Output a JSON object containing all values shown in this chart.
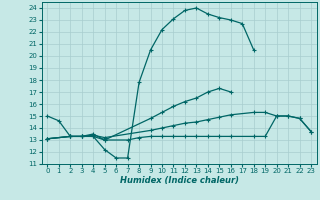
{
  "xlabel": "Humidex (Indice chaleur)",
  "xlim": [
    -0.5,
    23.5
  ],
  "ylim": [
    11,
    24.5
  ],
  "yticks": [
    11,
    12,
    13,
    14,
    15,
    16,
    17,
    18,
    19,
    20,
    21,
    22,
    23,
    24
  ],
  "xticks": [
    0,
    1,
    2,
    3,
    4,
    5,
    6,
    7,
    8,
    9,
    10,
    11,
    12,
    13,
    14,
    15,
    16,
    17,
    18,
    19,
    20,
    21,
    22,
    23
  ],
  "bg_color": "#c6e8e6",
  "line_color": "#006666",
  "grid_color": "#a8cece",
  "series": [
    {
      "x": [
        0,
        1,
        2,
        3,
        4,
        5,
        6,
        7,
        8,
        9,
        10,
        11,
        12,
        13,
        14,
        15,
        16,
        17,
        18
      ],
      "y": [
        15.0,
        14.6,
        13.3,
        13.3,
        13.3,
        12.2,
        11.5,
        11.5,
        17.8,
        20.5,
        22.2,
        23.1,
        23.8,
        24.0,
        23.5,
        23.2,
        23.0,
        22.7,
        20.5
      ]
    },
    {
      "x": [
        0,
        2,
        3,
        4,
        5,
        9,
        10,
        11,
        12,
        13,
        14,
        15,
        16
      ],
      "y": [
        13.1,
        13.3,
        13.3,
        13.5,
        13.0,
        14.8,
        15.3,
        15.8,
        16.2,
        16.5,
        17.0,
        17.3,
        17.0
      ]
    },
    {
      "x": [
        0,
        2,
        3,
        4,
        5,
        9,
        10,
        11,
        12,
        13,
        14,
        15,
        16,
        18,
        19,
        20,
        21,
        22,
        23
      ],
      "y": [
        13.1,
        13.3,
        13.3,
        13.4,
        13.2,
        13.8,
        14.0,
        14.2,
        14.4,
        14.5,
        14.7,
        14.9,
        15.1,
        15.3,
        15.3,
        15.0,
        15.0,
        14.8,
        13.7
      ]
    },
    {
      "x": [
        0,
        2,
        3,
        4,
        5,
        7,
        8,
        9,
        10,
        11,
        12,
        13,
        14,
        15,
        16,
        18,
        19,
        20,
        21,
        22,
        23
      ],
      "y": [
        13.1,
        13.3,
        13.3,
        13.3,
        13.0,
        13.0,
        13.2,
        13.3,
        13.3,
        13.3,
        13.3,
        13.3,
        13.3,
        13.3,
        13.3,
        13.3,
        13.3,
        15.0,
        15.0,
        14.8,
        13.7
      ]
    }
  ]
}
